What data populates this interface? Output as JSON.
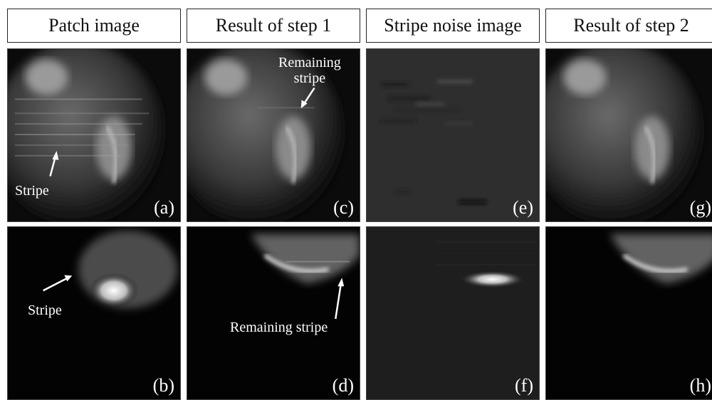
{
  "headers": [
    "Patch image",
    "Result of step 1",
    "Stripe noise image",
    "Result of step 2"
  ],
  "labels": {
    "a": "(a)",
    "b": "(b)",
    "c": "(c)",
    "d": "(d)",
    "e": "(e)",
    "f": "(f)",
    "g": "(g)",
    "h": "(h)"
  },
  "annotations": {
    "stripe_a": "Stripe",
    "stripe_b": "Stripe",
    "remaining_c_line1": "Remaining",
    "remaining_c_line2": "stripe",
    "remaining_d": "Remaining stripe"
  }
}
